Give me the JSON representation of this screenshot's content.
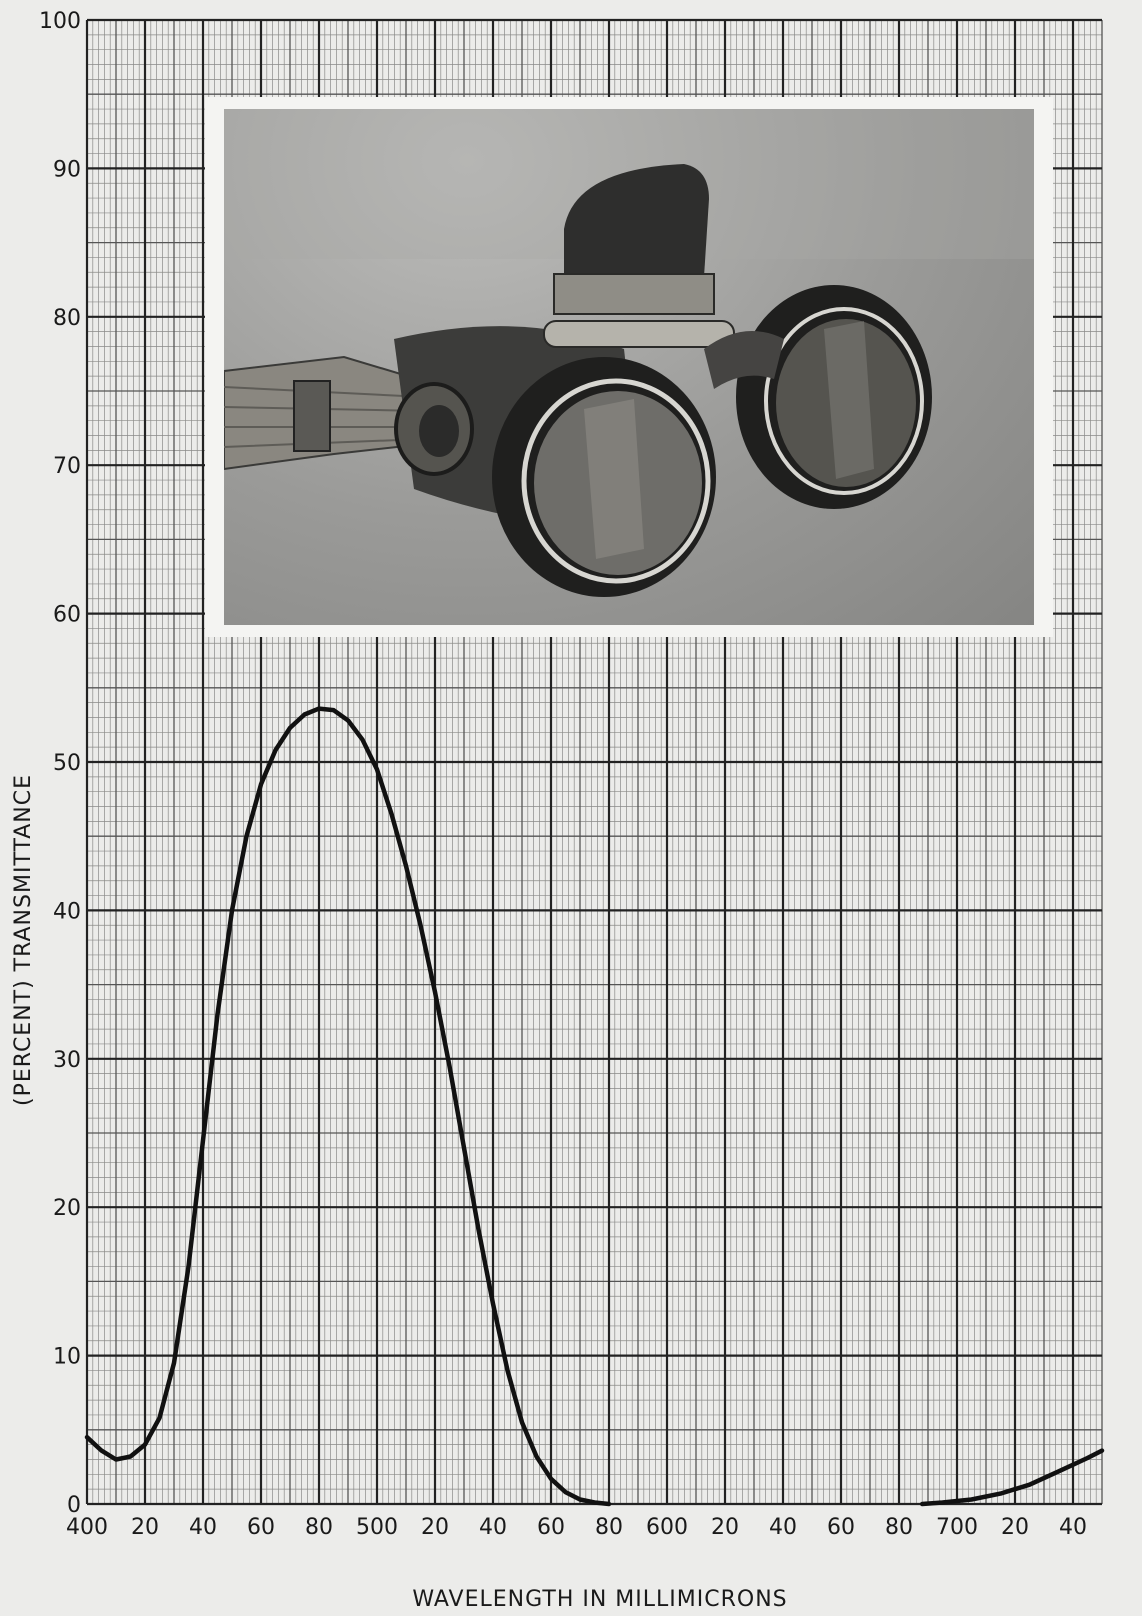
{
  "chart_data": {
    "type": "line",
    "title": "",
    "xlabel": "WAVELENGTH IN MILLIMICRONS",
    "ylabel": "(PERCENT)  TRANSMITTANCE",
    "xlim": [
      400,
      750
    ],
    "ylim": [
      0,
      100
    ],
    "grid": true,
    "x_tick_labels": [
      "400",
      "20",
      "40",
      "60",
      "80",
      "500",
      "20",
      "40",
      "60",
      "80",
      "600",
      "20",
      "40",
      "60",
      "80",
      "700",
      "20",
      "40"
    ],
    "y_tick_labels": [
      "0",
      "10",
      "20",
      "30",
      "40",
      "50",
      "60",
      "70",
      "80",
      "90",
      "100"
    ],
    "series": [
      {
        "segments": [
          [
            [
              400,
              4.5
            ],
            [
              405,
              3.6
            ],
            [
              410,
              3.0
            ],
            [
              415,
              3.2
            ],
            [
              420,
              4.0
            ],
            [
              425,
              5.8
            ],
            [
              430,
              9.5
            ],
            [
              435,
              16.0
            ],
            [
              440,
              24.5
            ],
            [
              445,
              33.0
            ],
            [
              450,
              40.0
            ],
            [
              455,
              45.0
            ],
            [
              460,
              48.5
            ],
            [
              465,
              50.8
            ],
            [
              470,
              52.3
            ],
            [
              475,
              53.2
            ],
            [
              480,
              53.6
            ],
            [
              485,
              53.5
            ],
            [
              490,
              52.8
            ],
            [
              495,
              51.5
            ],
            [
              500,
              49.5
            ],
            [
              505,
              46.5
            ],
            [
              510,
              43.0
            ],
            [
              515,
              39.0
            ],
            [
              520,
              34.5
            ],
            [
              525,
              29.5
            ],
            [
              530,
              24.0
            ],
            [
              535,
              18.5
            ],
            [
              540,
              13.5
            ],
            [
              545,
              9.0
            ],
            [
              550,
              5.5
            ],
            [
              555,
              3.2
            ],
            [
              560,
              1.7
            ],
            [
              565,
              0.8
            ],
            [
              570,
              0.3
            ],
            [
              575,
              0.1
            ],
            [
              580,
              0
            ]
          ],
          [
            [
              688,
              0
            ],
            [
              695,
              0.1
            ],
            [
              705,
              0.3
            ],
            [
              715,
              0.7
            ],
            [
              725,
              1.3
            ],
            [
              735,
              2.2
            ],
            [
              745,
              3.1
            ],
            [
              750,
              3.6
            ]
          ]
        ]
      }
    ]
  }
}
